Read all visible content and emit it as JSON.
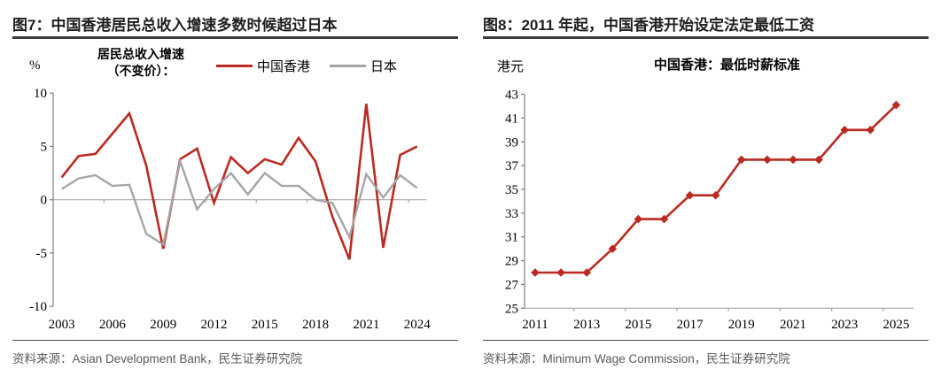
{
  "panels": [
    {
      "title": "图7：中国香港居民总收入增速多数时候超过日本",
      "source": "资料来源：Asian Development Bank，民生证券研究院"
    },
    {
      "title": "图8：2011 年起，中国香港开始设定法定最低工资",
      "source": "资料来源：Minimum Wage Commission，民生证券研究院"
    }
  ],
  "colors": {
    "hk_red": "#BB2A21",
    "japan_gray": "#A6A6A6",
    "axis_gray": "#7f7f7f",
    "baseline_gray": "#A6A6A6",
    "tick_text": "#000000",
    "title_text": "#1f1f1f",
    "source_text": "#595959"
  },
  "chart_data": [
    {
      "type": "line",
      "title": "",
      "unit_label": "%",
      "legend_title": "居民总收入增速\n（不变价）：",
      "legend_position": "top",
      "grid": false,
      "x": [
        2003,
        2004,
        2005,
        2006,
        2007,
        2008,
        2009,
        2010,
        2011,
        2012,
        2013,
        2014,
        2015,
        2016,
        2017,
        2018,
        2019,
        2020,
        2021,
        2022,
        2023,
        2024
      ],
      "xticks": [
        2003,
        2006,
        2009,
        2012,
        2015,
        2018,
        2021,
        2024
      ],
      "ylim": [
        -10,
        10
      ],
      "yticks": [
        10,
        5,
        0,
        -5,
        -10
      ],
      "series": [
        {
          "name": "中国香港",
          "color": "#BB2A21",
          "marker": "none",
          "values": [
            2.1,
            4.1,
            4.3,
            6.2,
            8.1,
            3.2,
            -4.6,
            3.8,
            4.8,
            -0.3,
            4.0,
            2.5,
            3.8,
            3.3,
            5.8,
            3.6,
            -1.6,
            -5.6,
            9.0,
            -4.5,
            4.2,
            5.0
          ]
        },
        {
          "name": "日本",
          "color": "#A6A6A6",
          "marker": "none",
          "values": [
            1.0,
            2.0,
            2.3,
            1.3,
            1.4,
            -3.2,
            -4.2,
            3.6,
            -0.9,
            1.0,
            2.5,
            0.5,
            2.5,
            1.3,
            1.3,
            0.0,
            -0.3,
            -3.5,
            2.4,
            0.2,
            2.3,
            1.1
          ]
        }
      ]
    },
    {
      "type": "line",
      "title": "中国香港：最低时薪标准",
      "unit_label": "港元",
      "legend_position": "none",
      "grid": false,
      "x": [
        2011,
        2012,
        2013,
        2014,
        2015,
        2016,
        2017,
        2018,
        2019,
        2020,
        2021,
        2022,
        2023,
        2024,
        2025
      ],
      "xticks": [
        2011,
        2013,
        2015,
        2017,
        2019,
        2021,
        2023,
        2025
      ],
      "ylim": [
        25,
        43
      ],
      "yticks": [
        43,
        41,
        39,
        37,
        35,
        33,
        31,
        29,
        27,
        25
      ],
      "series": [
        {
          "name": "中国香港：最低时薪标准",
          "color": "#BB2A21",
          "marker": "diamond",
          "values": [
            28,
            28,
            28,
            30,
            32.5,
            32.5,
            34.5,
            34.5,
            37.5,
            37.5,
            37.5,
            37.5,
            40,
            40,
            42.1
          ]
        }
      ]
    }
  ]
}
